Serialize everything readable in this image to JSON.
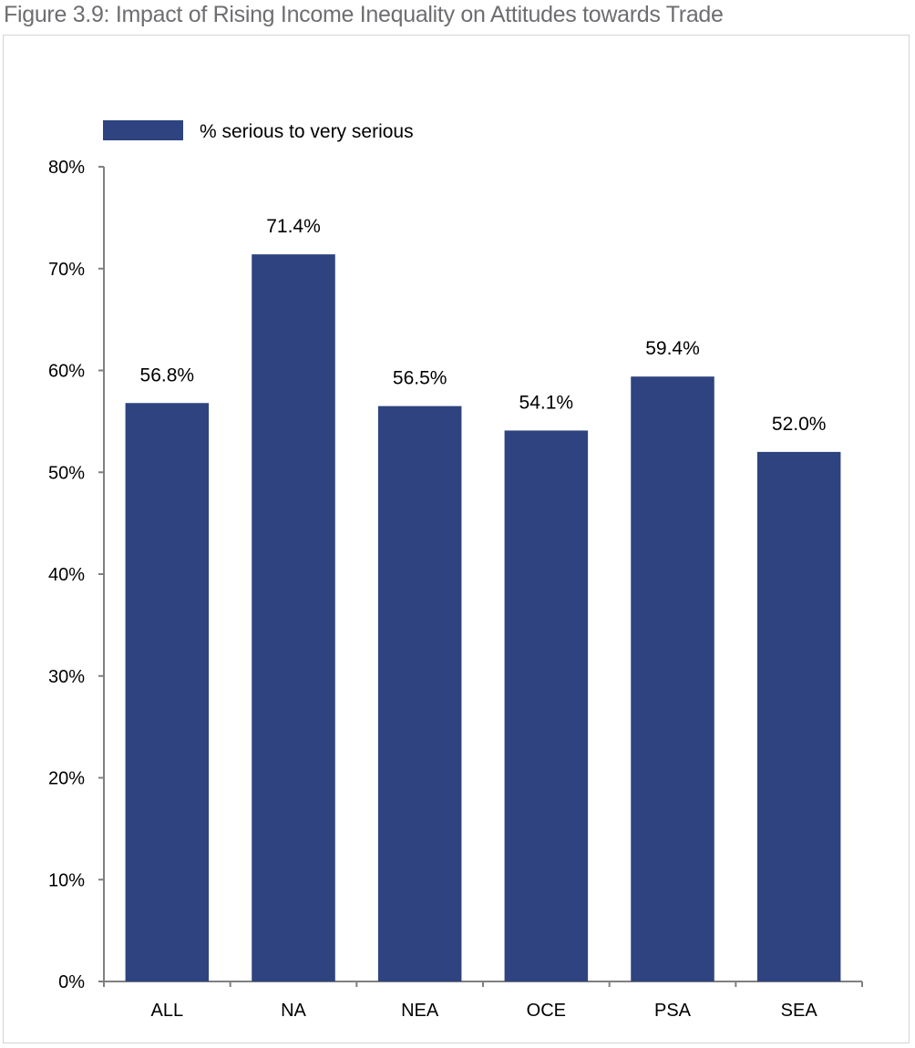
{
  "figure": {
    "title": "Figure 3.9: Impact of Rising Income Inequality on Attitudes towards Trade"
  },
  "chart_data": {
    "type": "bar",
    "categories": [
      "ALL",
      "NA",
      "NEA",
      "OCE",
      "PSA",
      "SEA"
    ],
    "series": [
      {
        "name": "% serious to very serious",
        "values": [
          56.8,
          71.4,
          56.5,
          54.1,
          59.4,
          52.0
        ],
        "data_labels": [
          "56.8%",
          "71.4%",
          "56.5%",
          "54.1%",
          "59.4%",
          "52.0%"
        ],
        "color": "#2e4380"
      }
    ],
    "title": "",
    "xlabel": "",
    "ylabel": "",
    "ylim": [
      0,
      80
    ],
    "yticks": [
      0,
      10,
      20,
      30,
      40,
      50,
      60,
      70,
      80
    ],
    "ytick_labels": [
      "0%",
      "10%",
      "20%",
      "30%",
      "40%",
      "50%",
      "60%",
      "70%",
      "80%"
    ],
    "grid": false,
    "legend_position": "top-left",
    "axis_color": "#808080"
  }
}
